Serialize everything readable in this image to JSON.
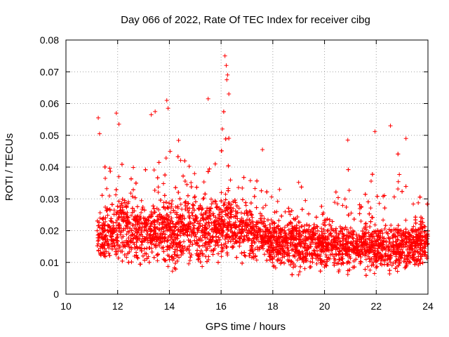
{
  "chart_data": {
    "type": "scatter",
    "title": "Day 066 of 2022, Rate Of TEC Index for receiver cibg",
    "xlabel": "GPS time / hours",
    "ylabel": "ROTI / TECUs",
    "xlim": [
      10,
      24
    ],
    "ylim": [
      0,
      0.08
    ],
    "x_ticks": [
      10,
      12,
      14,
      16,
      18,
      20,
      22,
      24
    ],
    "y_ticks": [
      0,
      0.01,
      0.02,
      0.03,
      0.04,
      0.05,
      0.06,
      0.07,
      0.08
    ],
    "x_tick_labels": [
      "10",
      "12",
      "14",
      "16",
      "18",
      "20",
      "22",
      "24"
    ],
    "y_tick_labels": [
      "0",
      "0.01",
      "0.02",
      "0.03",
      "0.04",
      "0.05",
      "0.06",
      "0.07",
      "0.08"
    ],
    "grid": true,
    "marker": "+",
    "color": "#ff0000",
    "series": [
      {
        "name": "ROTI",
        "description": "dense point cloud from ~11.2 h to 24 h; core 0.008–0.03, peaks near 0.075 at ~16.2 h",
        "envelope": [
          {
            "x": 11.2,
            "low": 0.009,
            "mid": 0.017,
            "high": 0.03
          },
          {
            "x": 11.5,
            "low": 0.009,
            "mid": 0.018,
            "high": 0.045
          },
          {
            "x": 12.0,
            "low": 0.008,
            "mid": 0.02,
            "high": 0.056
          },
          {
            "x": 12.5,
            "low": 0.008,
            "mid": 0.02,
            "high": 0.045
          },
          {
            "x": 13.0,
            "low": 0.008,
            "mid": 0.02,
            "high": 0.045
          },
          {
            "x": 13.5,
            "low": 0.008,
            "mid": 0.019,
            "high": 0.055
          },
          {
            "x": 14.0,
            "low": 0.005,
            "mid": 0.019,
            "high": 0.06
          },
          {
            "x": 14.5,
            "low": 0.008,
            "mid": 0.02,
            "high": 0.05
          },
          {
            "x": 15.0,
            "low": 0.008,
            "mid": 0.02,
            "high": 0.045
          },
          {
            "x": 15.5,
            "low": 0.008,
            "mid": 0.02,
            "high": 0.05
          },
          {
            "x": 16.0,
            "low": 0.009,
            "mid": 0.02,
            "high": 0.052
          },
          {
            "x": 16.2,
            "low": 0.01,
            "mid": 0.022,
            "high": 0.075
          },
          {
            "x": 16.5,
            "low": 0.01,
            "mid": 0.02,
            "high": 0.045
          },
          {
            "x": 17.0,
            "low": 0.009,
            "mid": 0.02,
            "high": 0.04
          },
          {
            "x": 17.5,
            "low": 0.008,
            "mid": 0.017,
            "high": 0.035
          },
          {
            "x": 18.0,
            "low": 0.007,
            "mid": 0.016,
            "high": 0.045
          },
          {
            "x": 18.5,
            "low": 0.007,
            "mid": 0.016,
            "high": 0.04
          },
          {
            "x": 19.0,
            "low": 0.006,
            "mid": 0.016,
            "high": 0.042
          },
          {
            "x": 19.5,
            "low": 0.006,
            "mid": 0.015,
            "high": 0.035
          },
          {
            "x": 20.0,
            "low": 0.006,
            "mid": 0.015,
            "high": 0.04
          },
          {
            "x": 20.5,
            "low": 0.006,
            "mid": 0.015,
            "high": 0.035
          },
          {
            "x": 21.0,
            "low": 0.006,
            "mid": 0.015,
            "high": 0.048
          },
          {
            "x": 21.5,
            "low": 0.006,
            "mid": 0.015,
            "high": 0.035
          },
          {
            "x": 22.0,
            "low": 0.006,
            "mid": 0.015,
            "high": 0.05
          },
          {
            "x": 22.5,
            "low": 0.006,
            "mid": 0.015,
            "high": 0.045
          },
          {
            "x": 23.0,
            "low": 0.005,
            "mid": 0.015,
            "high": 0.052
          },
          {
            "x": 23.5,
            "low": 0.006,
            "mid": 0.015,
            "high": 0.04
          },
          {
            "x": 24.0,
            "low": 0.008,
            "mid": 0.016,
            "high": 0.042
          }
        ],
        "outliers": [
          {
            "x": 11.25,
            "y": 0.0555
          },
          {
            "x": 11.3,
            "y": 0.0505
          },
          {
            "x": 11.95,
            "y": 0.057
          },
          {
            "x": 12.05,
            "y": 0.0535
          },
          {
            "x": 13.3,
            "y": 0.0565
          },
          {
            "x": 13.45,
            "y": 0.0575
          },
          {
            "x": 13.9,
            "y": 0.061
          },
          {
            "x": 13.95,
            "y": 0.0585
          },
          {
            "x": 15.5,
            "y": 0.0615
          },
          {
            "x": 16.15,
            "y": 0.075
          },
          {
            "x": 16.2,
            "y": 0.072
          },
          {
            "x": 16.25,
            "y": 0.069
          },
          {
            "x": 16.22,
            "y": 0.0675
          },
          {
            "x": 16.3,
            "y": 0.063
          },
          {
            "x": 16.05,
            "y": 0.052
          },
          {
            "x": 17.6,
            "y": 0.0455
          },
          {
            "x": 20.9,
            "y": 0.0485
          },
          {
            "x": 21.95,
            "y": 0.0512
          },
          {
            "x": 22.55,
            "y": 0.053
          },
          {
            "x": 23.15,
            "y": 0.049
          }
        ]
      }
    ]
  }
}
